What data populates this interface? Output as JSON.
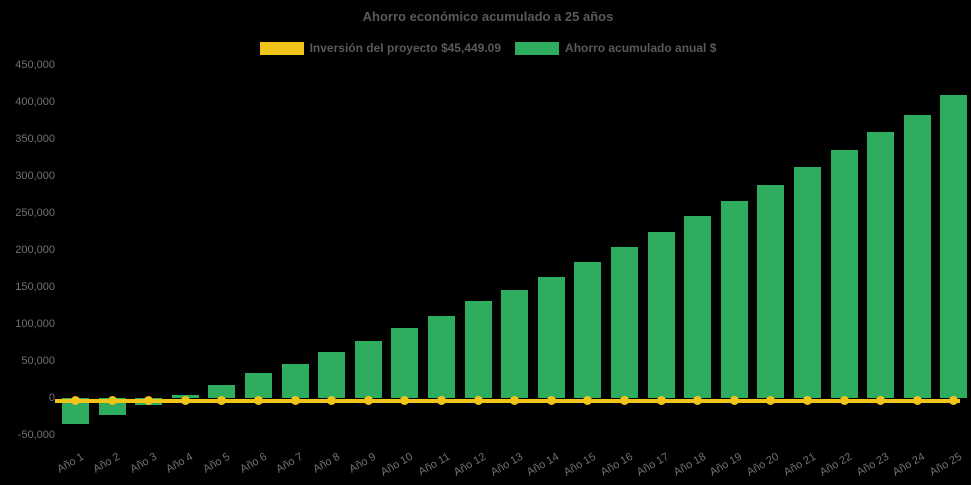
{
  "chart_data": {
    "type": "bar",
    "title": "Ahorro económico acumulado a 25 años",
    "categories": [
      "Año 1",
      "Año 2",
      "Año 3",
      "Año 4",
      "Año 5",
      "Año 6",
      "Año 7",
      "Año 8",
      "Año 9",
      "Año 10",
      "Año 11",
      "Año 12",
      "Año 13",
      "Año 14",
      "Año 15",
      "Año 16",
      "Año 17",
      "Año 18",
      "Año 19",
      "Año 20",
      "Año 21",
      "Año 22",
      "Año 23",
      "Año 24",
      "Año 25"
    ],
    "series": [
      {
        "name": "Inversión del proyecto $45,449.09",
        "type": "line",
        "marker": "circle",
        "color": "#F0C419",
        "values": [
          0,
          0,
          0,
          0,
          0,
          0,
          0,
          0,
          0,
          0,
          0,
          0,
          0,
          0,
          0,
          0,
          0,
          0,
          0,
          0,
          0,
          0,
          0,
          0,
          0
        ]
      },
      {
        "name": "Ahorro acumulado anual $",
        "type": "bar",
        "color": "#2EAD5E",
        "values": [
          -35000,
          -22000,
          -9000,
          5000,
          18000,
          34000,
          47000,
          63000,
          78000,
          95000,
          111000,
          131000,
          146000,
          164000,
          184000,
          205000,
          224000,
          246000,
          266000,
          288000,
          312000,
          335000,
          360000,
          383000,
          410000
        ]
      }
    ],
    "ylim": [
      -50000,
      450000
    ],
    "ytick_step": 50000,
    "ytick_labels": [
      "450,000",
      "400,000",
      "350,000",
      "300,000",
      "250,000",
      "200,000",
      "150,000",
      "100,000",
      "50,000",
      "0",
      "-50,000"
    ],
    "grid": false,
    "legend_position": "top",
    "background": "#000000",
    "text_colors": {
      "title": "#595959",
      "legend": "#595959",
      "axis": "#717171"
    }
  }
}
